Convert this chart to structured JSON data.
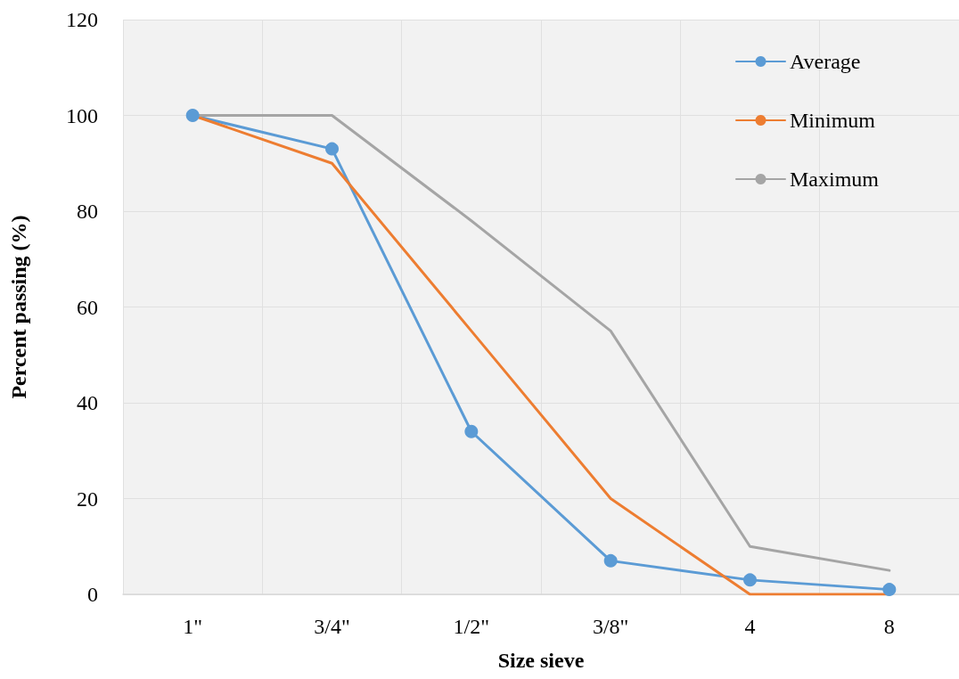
{
  "chart_data": {
    "type": "line",
    "xlabel": "Size sieve",
    "ylabel": "Percent passing (%)",
    "categories": [
      "1\"",
      "3/4\"",
      "1/2\"",
      "3/8\"",
      "4",
      "8"
    ],
    "series": [
      {
        "name": "Average",
        "color": "#5b9bd5",
        "marker": "circle",
        "values": [
          100,
          93,
          34,
          7,
          3,
          1
        ]
      },
      {
        "name": "Minimum",
        "color": "#ed7d31",
        "marker": "none",
        "values": [
          100,
          90,
          55,
          20,
          0,
          0
        ]
      },
      {
        "name": "Maximum",
        "color": "#a5a5a5",
        "marker": "none",
        "values": [
          100,
          100,
          78,
          55,
          10,
          5
        ]
      }
    ],
    "ylim": [
      0,
      120
    ],
    "yticks": [
      0,
      20,
      40,
      60,
      80,
      100,
      120
    ],
    "grid": true,
    "legend": "top right",
    "line_style": "solid"
  }
}
